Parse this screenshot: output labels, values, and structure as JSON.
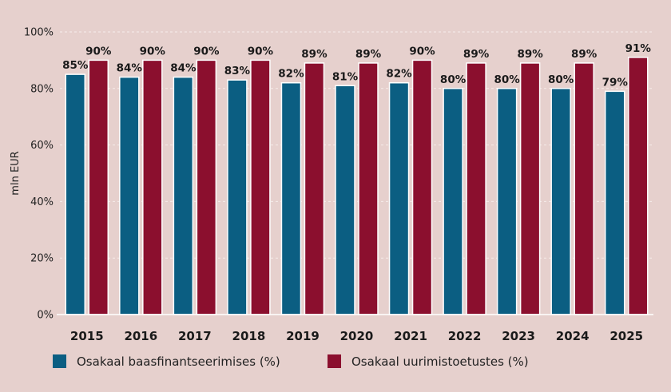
{
  "chart_data": {
    "type": "bar",
    "ylabel": "mln EUR",
    "ylim": [
      0,
      100
    ],
    "y_ticks": [
      "0%",
      "20%",
      "40%",
      "60%",
      "80%",
      "100%"
    ],
    "grid": true,
    "legend_position": "bottom-left",
    "categories": [
      "2015",
      "2016",
      "2017",
      "2018",
      "2019",
      "2020",
      "2021",
      "2022",
      "2023",
      "2024",
      "2025"
    ],
    "series": [
      {
        "name": "Osakaal baasfinantseerimises (%)",
        "color": "#0b5e82",
        "values": [
          85,
          84,
          84,
          83,
          82,
          81,
          82,
          80,
          80,
          80,
          79
        ],
        "labels": [
          "85%",
          "84%",
          "84%",
          "83%",
          "82%",
          "81%",
          "82%",
          "80%",
          "80%",
          "80%",
          "79%"
        ]
      },
      {
        "name": "Osakaal uurimistoetustes (%)",
        "color": "#8b0f2e",
        "values": [
          90,
          90,
          90,
          90,
          89,
          89,
          90,
          89,
          89,
          89,
          91
        ],
        "labels": [
          "90%",
          "90%",
          "90%",
          "90%",
          "89%",
          "89%",
          "90%",
          "89%",
          "89%",
          "89%",
          "91%"
        ]
      }
    ]
  }
}
